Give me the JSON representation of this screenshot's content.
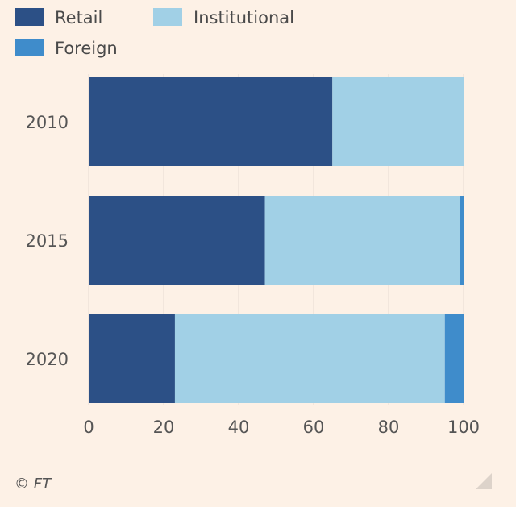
{
  "chart_data": {
    "type": "bar",
    "orientation": "horizontal",
    "stacked": true,
    "categories": [
      "2010",
      "2015",
      "2020"
    ],
    "series": [
      {
        "name": "Retail",
        "color": "#2c5086",
        "values": [
          65,
          47,
          23
        ]
      },
      {
        "name": "Institutional",
        "color": "#a1d0e6",
        "values": [
          35,
          52,
          72
        ]
      },
      {
        "name": "Foreign",
        "color": "#3f8ccb",
        "values": [
          0,
          1,
          5
        ]
      }
    ],
    "xlim": [
      0,
      100
    ],
    "xticks": [
      "0",
      "20",
      "40",
      "60",
      "80",
      "100"
    ],
    "grid": true,
    "legend": "top-left"
  },
  "footer": {
    "credit": "© FT"
  }
}
